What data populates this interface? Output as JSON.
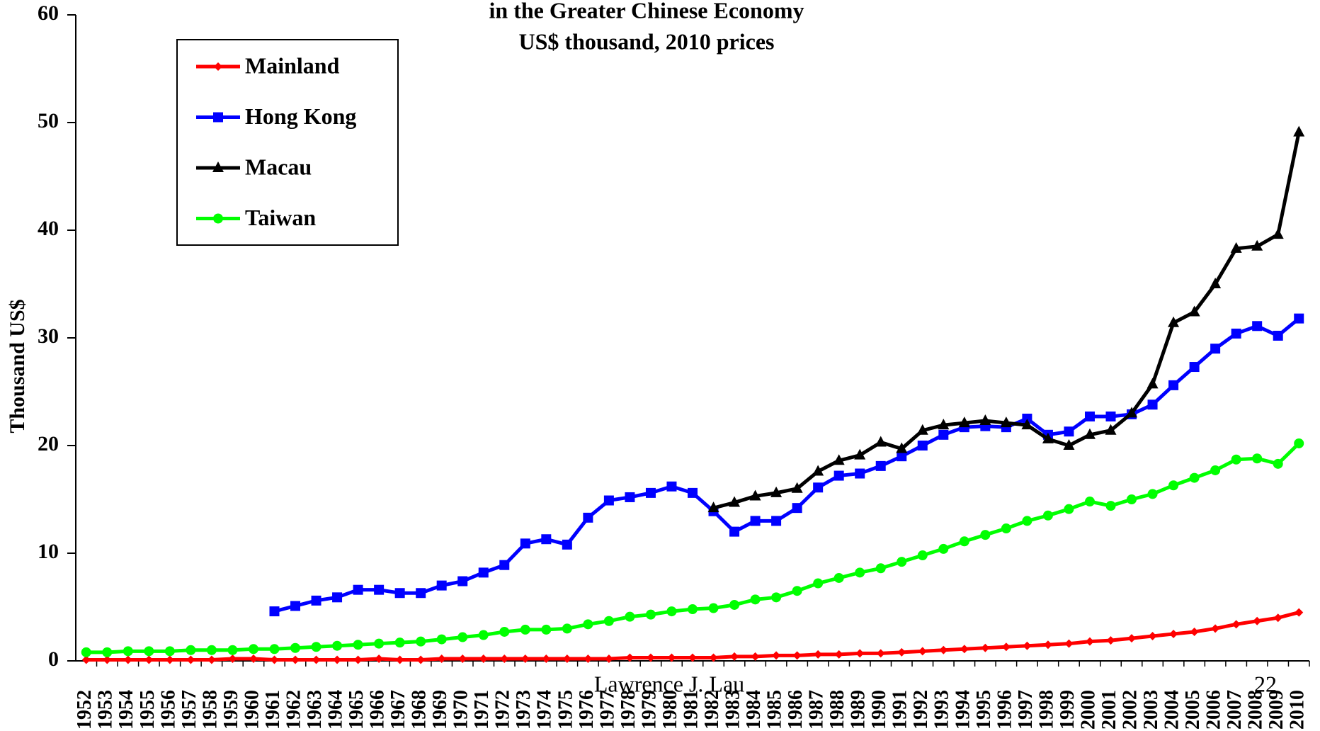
{
  "chart_data": {
    "type": "line",
    "title": "in the Greater Chinese Economy",
    "subtitle": "US$ thousand, 2010 prices",
    "y_label": "Thousand US$",
    "footer": "Lawrence J. Lau",
    "page_number": "22",
    "categories": [
      "1952",
      "1953",
      "1954",
      "1955",
      "1956",
      "1957",
      "1958",
      "1959",
      "1960",
      "1961",
      "1962",
      "1963",
      "1964",
      "1965",
      "1966",
      "1967",
      "1968",
      "1969",
      "1970",
      "1971",
      "1972",
      "1973",
      "1974",
      "1975",
      "1976",
      "1977",
      "1978",
      "1979",
      "1980",
      "1981",
      "1982",
      "1983",
      "1984",
      "1985",
      "1986",
      "1987",
      "1988",
      "1989",
      "1990",
      "1991",
      "1992",
      "1993",
      "1994",
      "1995",
      "1996",
      "1997",
      "1998",
      "1999",
      "2000",
      "2001",
      "2002",
      "2003",
      "2004",
      "2005",
      "2006",
      "2007",
      "2008",
      "2009",
      "2010"
    ],
    "series": [
      {
        "name": "Mainland",
        "color": "#ff0000",
        "marker": "diamond",
        "values": [
          0.1,
          0.1,
          0.1,
          0.1,
          0.1,
          0.1,
          0.1,
          0.2,
          0.2,
          0.1,
          0.1,
          0.1,
          0.1,
          0.1,
          0.2,
          0.1,
          0.1,
          0.2,
          0.2,
          0.2,
          0.2,
          0.2,
          0.2,
          0.2,
          0.2,
          0.2,
          0.3,
          0.3,
          0.3,
          0.3,
          0.3,
          0.4,
          0.4,
          0.5,
          0.5,
          0.6,
          0.6,
          0.7,
          0.7,
          0.8,
          0.9,
          1.0,
          1.1,
          1.2,
          1.3,
          1.4,
          1.5,
          1.6,
          1.8,
          1.9,
          2.1,
          2.3,
          2.5,
          2.7,
          3.0,
          3.4,
          3.7,
          4.0,
          4.5
        ]
      },
      {
        "name": "Hong Kong",
        "color": "#0000ff",
        "marker": "square",
        "values": [
          null,
          null,
          null,
          null,
          null,
          null,
          null,
          null,
          null,
          4.6,
          5.1,
          5.6,
          5.9,
          6.6,
          6.6,
          6.3,
          6.3,
          7.0,
          7.4,
          8.2,
          8.9,
          10.9,
          11.3,
          10.8,
          13.3,
          14.9,
          15.2,
          15.6,
          16.2,
          15.6,
          13.9,
          12.0,
          13.0,
          13.0,
          14.2,
          16.1,
          17.2,
          17.4,
          18.1,
          19.0,
          20.0,
          21.0,
          21.7,
          21.8,
          21.7,
          22.5,
          21.0,
          21.3,
          22.7,
          22.7,
          22.9,
          23.8,
          25.6,
          27.3,
          29.0,
          30.4,
          31.1,
          30.2,
          31.8
        ]
      },
      {
        "name": "Macau",
        "color": "#000000",
        "marker": "triangle",
        "values": [
          null,
          null,
          null,
          null,
          null,
          null,
          null,
          null,
          null,
          null,
          null,
          null,
          null,
          null,
          null,
          null,
          null,
          null,
          null,
          null,
          null,
          null,
          null,
          null,
          null,
          null,
          null,
          null,
          null,
          null,
          14.2,
          14.7,
          15.3,
          15.6,
          16.0,
          17.6,
          18.6,
          19.1,
          20.3,
          19.7,
          21.4,
          21.9,
          22.1,
          22.3,
          22.1,
          21.9,
          20.6,
          20.0,
          21.0,
          21.4,
          23.0,
          25.7,
          31.4,
          32.4,
          35.0,
          38.3,
          38.5,
          39.6,
          49.1
        ]
      },
      {
        "name": "Taiwan",
        "color": "#00ff00",
        "marker": "circle",
        "values": [
          0.8,
          0.8,
          0.9,
          0.9,
          0.9,
          1.0,
          1.0,
          1.0,
          1.1,
          1.1,
          1.2,
          1.3,
          1.4,
          1.5,
          1.6,
          1.7,
          1.8,
          2.0,
          2.2,
          2.4,
          2.7,
          2.9,
          2.9,
          3.0,
          3.4,
          3.7,
          4.1,
          4.3,
          4.6,
          4.8,
          4.9,
          5.2,
          5.7,
          5.9,
          6.5,
          7.2,
          7.7,
          8.2,
          8.6,
          9.2,
          9.8,
          10.4,
          11.1,
          11.7,
          12.3,
          13.0,
          13.5,
          14.1,
          14.8,
          14.4,
          15.0,
          15.5,
          16.3,
          17.0,
          17.7,
          18.7,
          18.8,
          18.3,
          20.2
        ]
      }
    ],
    "ylim": [
      0,
      60
    ],
    "yticks": [
      0,
      10,
      20,
      30,
      40,
      50,
      60
    ],
    "legend": "upper left"
  }
}
